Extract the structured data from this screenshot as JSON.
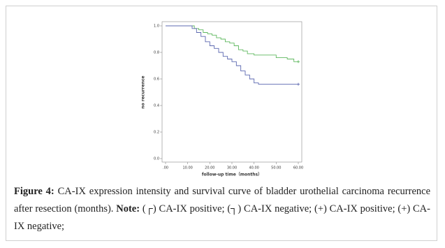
{
  "chart_data": {
    "type": "step",
    "y_label": "no recurrence",
    "x_label": "follow-up time（months）",
    "xlim": [
      0,
      60
    ],
    "ylim": [
      0,
      1
    ],
    "xticks": [
      {
        "value": 0,
        "label": ".00"
      },
      {
        "value": 10,
        "label": "10.00"
      },
      {
        "value": 20,
        "label": "20.00"
      },
      {
        "value": 30,
        "label": "30.00"
      },
      {
        "value": 40,
        "label": "40.00"
      },
      {
        "value": 50,
        "label": "50.00"
      },
      {
        "value": 60,
        "label": "60.00"
      }
    ],
    "yticks": [
      {
        "value": 0,
        "label": "0.0"
      },
      0.2,
      0.4,
      0.6,
      0.8,
      {
        "value": 1,
        "label": "1.0"
      }
    ],
    "series": [
      {
        "color": "#5fb85f",
        "x": [
          0,
          13,
          15,
          17,
          19,
          21,
          23,
          25,
          27,
          29,
          31,
          33,
          35,
          37,
          40,
          45,
          50,
          55,
          58,
          60
        ],
        "values": [
          1,
          0.98,
          0.97,
          0.95,
          0.94,
          0.93,
          0.91,
          0.9,
          0.88,
          0.87,
          0.85,
          0.82,
          0.81,
          0.79,
          0.78,
          0.78,
          0.76,
          0.75,
          0.73,
          0.73
        ]
      },
      {
        "color": "#5c68b0",
        "x": [
          0,
          12,
          14,
          16,
          18,
          20,
          22,
          24,
          26,
          28,
          30,
          32,
          34,
          36,
          38,
          40,
          42,
          60
        ],
        "values": [
          1,
          0.98,
          0.95,
          0.92,
          0.88,
          0.85,
          0.83,
          0.8,
          0.77,
          0.75,
          0.73,
          0.7,
          0.66,
          0.63,
          0.6,
          0.57,
          0.56,
          0.56
        ]
      }
    ]
  },
  "caption": {
    "label": "Figure 4:",
    "text": "CA-IX expression intensity and survival curve of bladder urothelial carcinoma recurrence after resection (months).",
    "note_label": "Note:",
    "notes": [
      "(┌) CA-IX positive;",
      "(┐) CA-IX negative;",
      "(+) CA-IX positive;",
      "(+) CA-IX negative;"
    ]
  }
}
